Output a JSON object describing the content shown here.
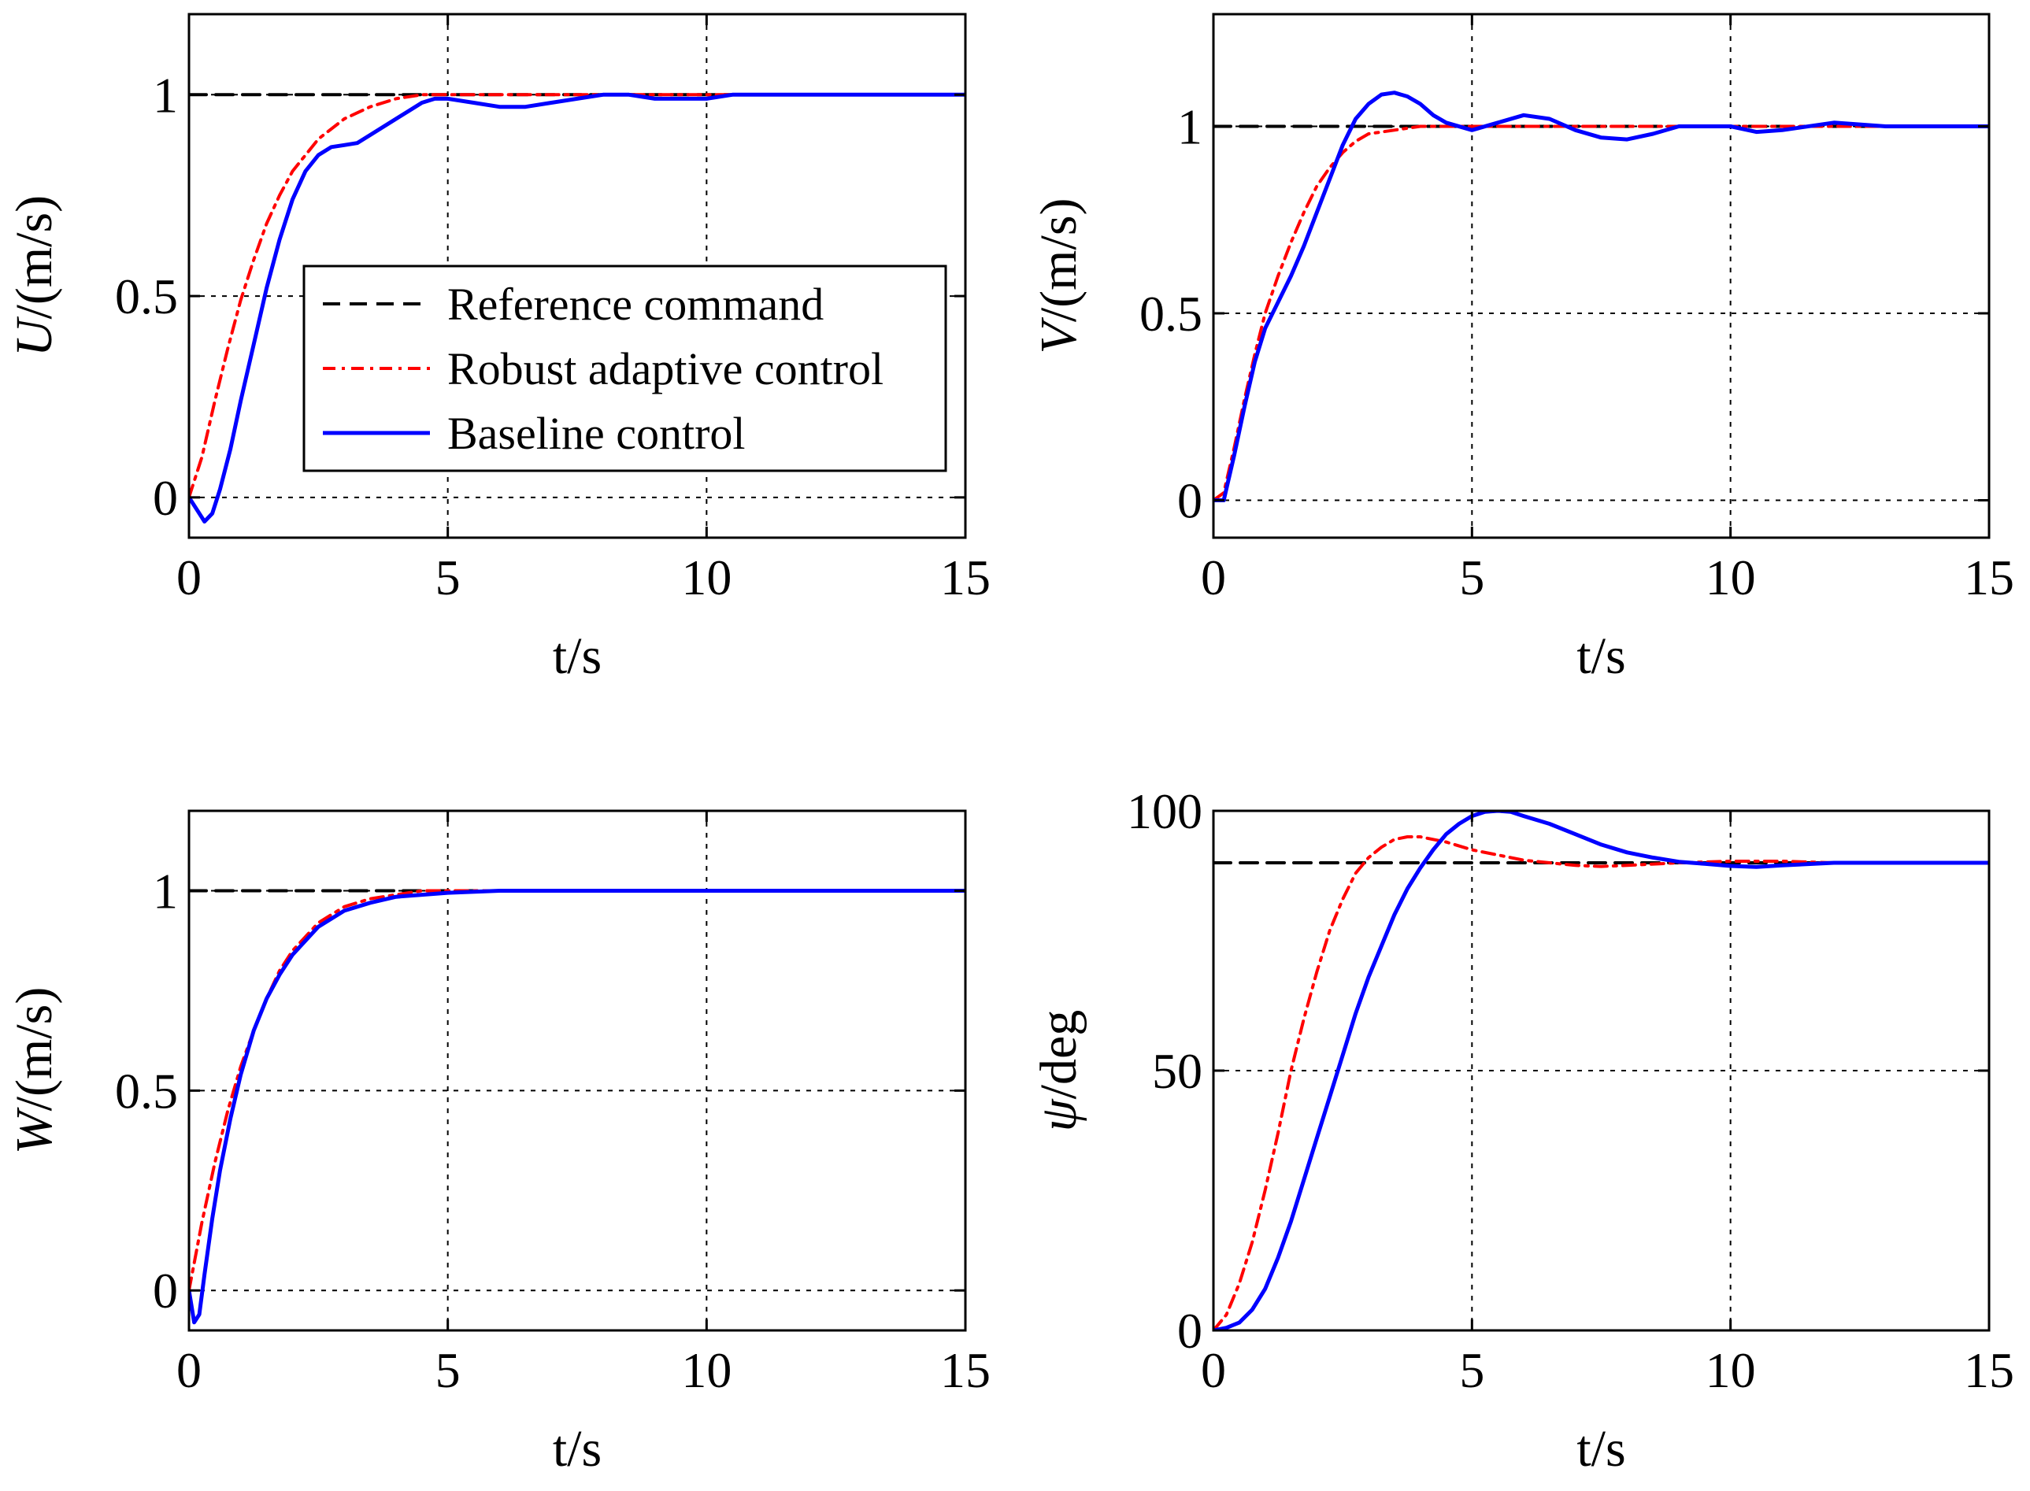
{
  "chart_data": [
    {
      "type": "line",
      "xlabel": "t/s",
      "ylabel_var": "U",
      "ylabel_unit": "/(m/s)",
      "xlim": [
        0,
        15
      ],
      "ylim": [
        -0.1,
        1.2
      ],
      "xticks": [
        0,
        5,
        10,
        15
      ],
      "yticks": [
        0,
        0.5,
        1
      ],
      "xtick_labels": [
        "0",
        "5",
        "10",
        "15"
      ],
      "ytick_labels": [
        "0",
        "0.5",
        "1"
      ],
      "grid": true,
      "series": [
        {
          "name": "Reference command",
          "color": "#000000",
          "style": "dashed",
          "x": [
            0,
            5,
            10,
            15
          ],
          "y": [
            1,
            1,
            1,
            1
          ]
        },
        {
          "name": "Robust adaptive control",
          "color": "#ff0000",
          "style": "dashdot",
          "x": [
            0,
            0.25,
            0.5,
            0.75,
            1,
            1.25,
            1.5,
            1.75,
            2,
            2.5,
            3,
            3.5,
            4,
            4.5,
            5,
            6,
            7,
            8,
            9,
            10,
            11,
            12,
            13,
            15
          ],
          "y": [
            0,
            0.1,
            0.24,
            0.37,
            0.49,
            0.59,
            0.68,
            0.75,
            0.81,
            0.89,
            0.94,
            0.97,
            0.99,
            1.0,
            1.0,
            1.0,
            1.0,
            1.0,
            1.0,
            1.0,
            1.0,
            1.0,
            1.0,
            1.0
          ]
        },
        {
          "name": "Baseline control",
          "color": "#0000ff",
          "style": "solid",
          "x": [
            0,
            0.15,
            0.3,
            0.45,
            0.6,
            0.8,
            1,
            1.25,
            1.5,
            1.75,
            2,
            2.25,
            2.5,
            2.75,
            3,
            3.25,
            3.5,
            3.75,
            4,
            4.25,
            4.5,
            4.75,
            5,
            5.5,
            6,
            6.5,
            7,
            7.5,
            8,
            8.5,
            9,
            9.5,
            10,
            10.5,
            11,
            12,
            13,
            15
          ],
          "y": [
            0,
            -0.03,
            -0.06,
            -0.04,
            0.02,
            0.12,
            0.24,
            0.38,
            0.52,
            0.64,
            0.74,
            0.81,
            0.85,
            0.87,
            0.875,
            0.88,
            0.9,
            0.92,
            0.94,
            0.96,
            0.98,
            0.99,
            0.99,
            0.98,
            0.97,
            0.97,
            0.98,
            0.99,
            1.0,
            1.0,
            0.99,
            0.99,
            0.99,
            1.0,
            1.0,
            1.0,
            1.0,
            1.0
          ]
        }
      ]
    },
    {
      "type": "line",
      "xlabel": "t/s",
      "ylabel_var": "V",
      "ylabel_unit": "/(m/s)",
      "xlim": [
        0,
        15
      ],
      "ylim": [
        -0.1,
        1.3
      ],
      "xticks": [
        0,
        5,
        10,
        15
      ],
      "yticks": [
        0,
        0.5,
        1
      ],
      "xtick_labels": [
        "0",
        "5",
        "10",
        "15"
      ],
      "ytick_labels": [
        "0",
        "0.5",
        "1"
      ],
      "grid": true,
      "series": [
        {
          "name": "Reference command",
          "color": "#000000",
          "style": "dashed",
          "x": [
            0,
            5,
            10,
            15
          ],
          "y": [
            1,
            1,
            1,
            1
          ]
        },
        {
          "name": "Robust adaptive control",
          "color": "#ff0000",
          "style": "dashdot",
          "x": [
            0,
            0.2,
            0.4,
            0.6,
            0.8,
            1,
            1.25,
            1.5,
            1.75,
            2,
            2.25,
            2.5,
            2.75,
            3,
            3.5,
            4,
            5,
            6,
            8,
            10,
            12,
            15
          ],
          "y": [
            0,
            0.02,
            0.14,
            0.27,
            0.39,
            0.5,
            0.6,
            0.69,
            0.77,
            0.84,
            0.89,
            0.93,
            0.96,
            0.98,
            0.99,
            1.0,
            1.0,
            1.0,
            1.0,
            1.0,
            1.0,
            1.0
          ]
        },
        {
          "name": "Baseline control",
          "color": "#0000ff",
          "style": "solid",
          "x": [
            0,
            0.2,
            0.4,
            0.6,
            0.8,
            1,
            1.25,
            1.5,
            1.75,
            2,
            2.25,
            2.5,
            2.75,
            3,
            3.25,
            3.5,
            3.75,
            4,
            4.25,
            4.5,
            5,
            5.5,
            6,
            6.5,
            7,
            7.5,
            8,
            8.5,
            9,
            10,
            10.5,
            11,
            12,
            13,
            15
          ],
          "y": [
            0,
            0.0,
            0.12,
            0.25,
            0.37,
            0.46,
            0.53,
            0.6,
            0.68,
            0.77,
            0.86,
            0.95,
            1.02,
            1.06,
            1.085,
            1.09,
            1.08,
            1.06,
            1.03,
            1.01,
            0.99,
            1.01,
            1.03,
            1.02,
            0.99,
            0.97,
            0.965,
            0.98,
            1.0,
            1.0,
            0.985,
            0.99,
            1.01,
            1.0,
            1.0
          ]
        }
      ]
    },
    {
      "type": "line",
      "xlabel": "t/s",
      "ylabel_var": "W",
      "ylabel_unit": "/(m/s)",
      "xlim": [
        0,
        15
      ],
      "ylim": [
        -0.1,
        1.2
      ],
      "xticks": [
        0,
        5,
        10,
        15
      ],
      "yticks": [
        0,
        0.5,
        1
      ],
      "xtick_labels": [
        "0",
        "5",
        "10",
        "15"
      ],
      "ytick_labels": [
        "0",
        "0.5",
        "1"
      ],
      "grid": true,
      "series": [
        {
          "name": "Reference command",
          "color": "#000000",
          "style": "dashed",
          "x": [
            0,
            5,
            10,
            15
          ],
          "y": [
            1,
            1,
            1,
            1
          ]
        },
        {
          "name": "Robust adaptive control",
          "color": "#ff0000",
          "style": "dashdot",
          "x": [
            0,
            0.25,
            0.5,
            0.75,
            1,
            1.25,
            1.5,
            1.75,
            2,
            2.5,
            3,
            3.5,
            4,
            4.5,
            5,
            5.5,
            6,
            6.5,
            7,
            15
          ],
          "y": [
            0,
            0.17,
            0.32,
            0.45,
            0.56,
            0.65,
            0.73,
            0.8,
            0.85,
            0.92,
            0.96,
            0.98,
            0.99,
            1.0,
            1.0,
            1.0,
            1.0,
            1.0,
            1.0,
            1.0
          ]
        },
        {
          "name": "Baseline control",
          "color": "#0000ff",
          "style": "solid",
          "x": [
            0,
            0.1,
            0.2,
            0.3,
            0.45,
            0.6,
            0.8,
            1,
            1.25,
            1.5,
            1.75,
            2,
            2.5,
            3,
            3.5,
            4,
            4.5,
            5,
            6,
            7,
            10,
            15
          ],
          "y": [
            0,
            -0.08,
            -0.06,
            0.04,
            0.18,
            0.3,
            0.43,
            0.54,
            0.65,
            0.73,
            0.79,
            0.84,
            0.91,
            0.95,
            0.97,
            0.985,
            0.99,
            0.995,
            1.0,
            1.0,
            1.0,
            1.0
          ]
        }
      ]
    },
    {
      "type": "line",
      "xlabel": "t/s",
      "ylabel_var": "ψ",
      "ylabel_unit": "/deg",
      "xlim": [
        0,
        15
      ],
      "ylim": [
        0,
        100
      ],
      "xticks": [
        0,
        5,
        10,
        15
      ],
      "yticks": [
        0,
        50,
        100
      ],
      "xtick_labels": [
        "0",
        "5",
        "10",
        "15"
      ],
      "ytick_labels": [
        "0",
        "50",
        "100"
      ],
      "grid": true,
      "series": [
        {
          "name": "Reference command",
          "color": "#000000",
          "style": "dashed",
          "x": [
            0,
            5,
            10,
            15
          ],
          "y": [
            90,
            90,
            90,
            90
          ]
        },
        {
          "name": "Robust adaptive control",
          "color": "#ff0000",
          "style": "dashdot",
          "x": [
            0,
            0.25,
            0.5,
            0.75,
            1,
            1.25,
            1.5,
            1.75,
            2,
            2.25,
            2.5,
            2.75,
            3,
            3.25,
            3.5,
            3.75,
            4,
            4.5,
            5,
            5.5,
            6,
            6.5,
            7,
            7.5,
            8,
            9,
            10,
            11,
            12,
            13,
            15
          ],
          "y": [
            0,
            3,
            9,
            17,
            27,
            38,
            50,
            60,
            69,
            77,
            83,
            88,
            91,
            93,
            94.5,
            95,
            95,
            94,
            92.5,
            91.5,
            90.5,
            90,
            89.5,
            89.3,
            89.5,
            90,
            90.3,
            90.3,
            90,
            90,
            90
          ]
        },
        {
          "name": "Baseline control",
          "color": "#0000ff",
          "style": "solid",
          "x": [
            0,
            0.25,
            0.5,
            0.75,
            1,
            1.25,
            1.5,
            1.75,
            2,
            2.25,
            2.5,
            2.75,
            3,
            3.25,
            3.5,
            3.75,
            4,
            4.25,
            4.5,
            4.75,
            5,
            5.25,
            5.5,
            5.75,
            6,
            6.5,
            7,
            7.5,
            8,
            8.5,
            9,
            9.5,
            10,
            10.5,
            11,
            12,
            13,
            15
          ],
          "y": [
            0,
            0.5,
            1.5,
            4,
            8,
            14,
            21,
            29,
            37,
            45,
            53,
            61,
            68,
            74,
            80,
            85,
            89,
            92.5,
            95.5,
            97.5,
            99,
            99.8,
            100,
            99.8,
            99,
            97.5,
            95.5,
            93.5,
            92,
            91,
            90.2,
            89.8,
            89.4,
            89.2,
            89.5,
            90,
            90,
            90
          ]
        }
      ]
    }
  ],
  "legend": {
    "items": [
      {
        "label": "Reference command",
        "color": "#000000",
        "style": "dashed"
      },
      {
        "label": "Robust adaptive control",
        "color": "#ff0000",
        "style": "dashdot"
      },
      {
        "label": "Baseline control",
        "color": "#0000ff",
        "style": "solid"
      }
    ]
  }
}
